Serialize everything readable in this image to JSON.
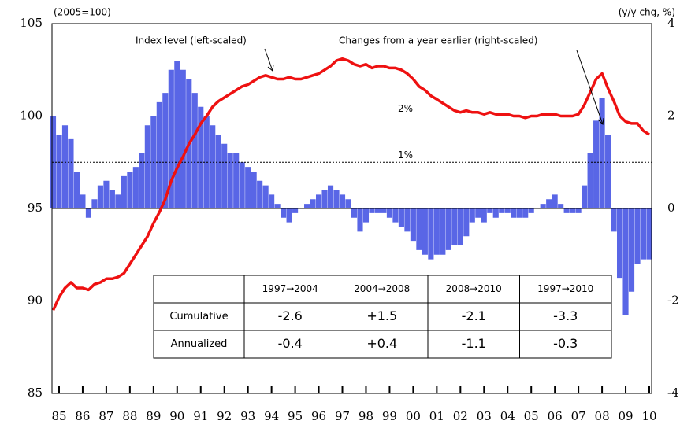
{
  "chart_data": {
    "type": "line_bar",
    "y_label": "(2005=100)",
    "y2_label": "(y/y chg, %)",
    "annotations": [
      "Index level (left-scaled)",
      "Changes from a year earlier (right-scaled)"
    ],
    "reference_lines": [
      {
        "value": 2,
        "label": "2%"
      },
      {
        "value": 1,
        "label": "1%"
      }
    ],
    "x": [
      1985.25,
      1985.5,
      1985.75,
      1986,
      1986.25,
      1986.5,
      1986.75,
      1987,
      1987.25,
      1987.5,
      1987.75,
      1988,
      1988.25,
      1988.5,
      1988.75,
      1989,
      1989.25,
      1989.5,
      1989.75,
      1990,
      1990.25,
      1990.5,
      1990.75,
      1991,
      1991.25,
      1991.5,
      1991.75,
      1992,
      1992.25,
      1992.5,
      1992.75,
      1993,
      1993.25,
      1993.5,
      1993.75,
      1994,
      1994.25,
      1994.5,
      1994.75,
      1995,
      1995.25,
      1995.5,
      1995.75,
      1996,
      1996.25,
      1996.5,
      1996.75,
      1997,
      1997.25,
      1997.5,
      1997.75,
      1998,
      1998.25,
      1998.5,
      1998.75,
      1999,
      1999.25,
      1999.5,
      1999.75,
      2000,
      2000.25,
      2000.5,
      2000.75,
      2001,
      2001.25,
      2001.5,
      2001.75,
      2002,
      2002.25,
      2002.5,
      2002.75,
      2003,
      2003.25,
      2003.5,
      2003.75,
      2004,
      2004.25,
      2004.5,
      2004.75,
      2005,
      2005.25,
      2005.5,
      2005.75,
      2006,
      2006.25,
      2006.5,
      2006.75,
      2007,
      2007.25,
      2007.5,
      2007.75,
      2008,
      2008.25,
      2008.5,
      2008.75,
      2009,
      2009.25,
      2009.5,
      2009.75,
      2010,
      2010.25,
      2010.5
    ],
    "series": [
      {
        "name": "Index level",
        "color": "#ee1111",
        "axis": "y",
        "values": [
          89.5,
          90.2,
          90.7,
          91.0,
          90.7,
          90.7,
          90.6,
          90.9,
          91.0,
          91.2,
          91.2,
          91.3,
          91.5,
          92.0,
          92.5,
          93.0,
          93.5,
          94.2,
          94.8,
          95.5,
          96.5,
          97.2,
          97.8,
          98.5,
          99.0,
          99.6,
          100.0,
          100.5,
          100.8,
          101.0,
          101.2,
          101.4,
          101.6,
          101.7,
          101.9,
          102.1,
          102.2,
          102.1,
          102.0,
          102.0,
          102.1,
          102.0,
          102.0,
          102.1,
          102.2,
          102.3,
          102.5,
          102.7,
          103.0,
          103.1,
          103.0,
          102.8,
          102.7,
          102.8,
          102.6,
          102.7,
          102.7,
          102.6,
          102.6,
          102.5,
          102.3,
          102.0,
          101.6,
          101.4,
          101.1,
          100.9,
          100.7,
          100.5,
          100.3,
          100.2,
          100.3,
          100.2,
          100.2,
          100.1,
          100.2,
          100.1,
          100.1,
          100.1,
          100.0,
          100.0,
          99.9,
          100.0,
          100.0,
          100.1,
          100.1,
          100.1,
          100.0,
          100.0,
          100.0,
          100.1,
          100.6,
          101.3,
          102.0,
          102.3,
          101.5,
          100.8,
          100.0,
          99.7,
          99.6,
          99.6,
          99.2,
          99.0
        ]
      },
      {
        "name": "Changes from a year earlier",
        "color": "#2233dd",
        "axis": "y2",
        "values": [
          2.0,
          1.6,
          1.8,
          1.5,
          0.8,
          0.3,
          -0.2,
          0.2,
          0.5,
          0.6,
          0.4,
          0.3,
          0.7,
          0.8,
          0.9,
          1.2,
          1.8,
          2.0,
          2.3,
          2.5,
          3.0,
          3.2,
          3.0,
          2.8,
          2.5,
          2.2,
          2.0,
          1.8,
          1.6,
          1.4,
          1.2,
          1.2,
          1.0,
          0.9,
          0.8,
          0.6,
          0.5,
          0.3,
          0.1,
          -0.2,
          -0.3,
          -0.1,
          0.0,
          0.1,
          0.2,
          0.3,
          0.4,
          0.5,
          0.4,
          0.3,
          0.2,
          -0.2,
          -0.5,
          -0.3,
          -0.1,
          -0.1,
          -0.1,
          -0.2,
          -0.3,
          -0.4,
          -0.5,
          -0.7,
          -0.9,
          -1.0,
          -1.1,
          -1.0,
          -1.0,
          -0.9,
          -0.8,
          -0.8,
          -0.6,
          -0.3,
          -0.2,
          -0.3,
          -0.1,
          -0.2,
          -0.1,
          -0.1,
          -0.2,
          -0.2,
          -0.2,
          -0.1,
          0.0,
          0.1,
          0.2,
          0.3,
          0.1,
          -0.1,
          -0.1,
          -0.1,
          0.5,
          1.2,
          1.9,
          2.4,
          1.6,
          -0.5,
          -1.5,
          -2.3,
          -1.8,
          -1.2,
          -1.1,
          -1.1
        ]
      }
    ],
    "xlim": [
      1985.2,
      2010.6
    ],
    "xticks": [
      {
        "value": 1985.5,
        "label": "85"
      },
      {
        "value": 1986.5,
        "label": "86"
      },
      {
        "value": 1987.5,
        "label": "87"
      },
      {
        "value": 1988.5,
        "label": "88"
      },
      {
        "value": 1989.5,
        "label": "89"
      },
      {
        "value": 1990.5,
        "label": "90"
      },
      {
        "value": 1991.5,
        "label": "91"
      },
      {
        "value": 1992.5,
        "label": "92"
      },
      {
        "value": 1993.5,
        "label": "93"
      },
      {
        "value": 1994.5,
        "label": "94"
      },
      {
        "value": 1995.5,
        "label": "95"
      },
      {
        "value": 1996.5,
        "label": "96"
      },
      {
        "value": 1997.5,
        "label": "97"
      },
      {
        "value": 1998.5,
        "label": "98"
      },
      {
        "value": 1999.5,
        "label": "99"
      },
      {
        "value": 2000.5,
        "label": "00"
      },
      {
        "value": 2001.5,
        "label": "01"
      },
      {
        "value": 2002.5,
        "label": "02"
      },
      {
        "value": 2003.5,
        "label": "03"
      },
      {
        "value": 2004.5,
        "label": "04"
      },
      {
        "value": 2005.5,
        "label": "05"
      },
      {
        "value": 2006.5,
        "label": "06"
      },
      {
        "value": 2007.5,
        "label": "07"
      },
      {
        "value": 2008.5,
        "label": "08"
      },
      {
        "value": 2009.5,
        "label": "09"
      },
      {
        "value": 2010.5,
        "label": "10"
      }
    ],
    "ylim": [
      85,
      105
    ],
    "yticks": [
      85,
      90,
      95,
      100,
      105
    ],
    "y2lim": [
      -4,
      4
    ],
    "y2ticks": [
      -4,
      -2,
      0,
      2,
      4
    ]
  },
  "table": {
    "columns": [
      "1997→2004",
      "2004→2008",
      "2008→2010",
      "1997→2010"
    ],
    "rows": [
      {
        "label": "Cumulative",
        "cells": [
          "-2.6",
          "+1.5",
          "-2.1",
          "-3.3"
        ]
      },
      {
        "label": "Annualized",
        "cells": [
          "-0.4",
          "+0.4",
          "-1.1",
          "-0.3"
        ]
      }
    ]
  }
}
